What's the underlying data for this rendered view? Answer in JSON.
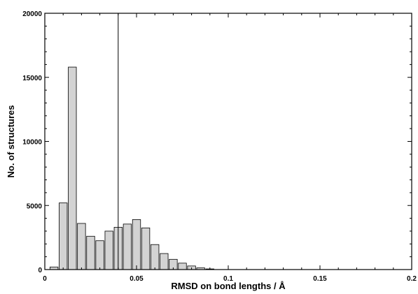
{
  "chart_data": {
    "type": "bar",
    "xlabel": "RMSD on bond lengths / Å",
    "ylabel": "No. of structures",
    "xlim": [
      0,
      0.2
    ],
    "ylim": [
      0,
      20000
    ],
    "x_ticks": [
      0,
      0.05,
      0.1,
      0.15,
      0.2
    ],
    "x_tick_labels": [
      "0",
      "0.05",
      "0.1",
      "0.15",
      "0.2"
    ],
    "y_ticks": [
      0,
      5000,
      10000,
      15000,
      20000
    ],
    "y_tick_labels": [
      "0",
      "5000",
      "10000",
      "15000",
      "20000"
    ],
    "bin_width": 0.005,
    "bins": [
      {
        "x": 0.005,
        "value": 200
      },
      {
        "x": 0.01,
        "value": 5200
      },
      {
        "x": 0.015,
        "value": 15800
      },
      {
        "x": 0.02,
        "value": 3600
      },
      {
        "x": 0.025,
        "value": 2600
      },
      {
        "x": 0.03,
        "value": 2250
      },
      {
        "x": 0.035,
        "value": 3000
      },
      {
        "x": 0.04,
        "value": 3300
      },
      {
        "x": 0.045,
        "value": 3550
      },
      {
        "x": 0.05,
        "value": 3900
      },
      {
        "x": 0.055,
        "value": 3250
      },
      {
        "x": 0.06,
        "value": 1950
      },
      {
        "x": 0.065,
        "value": 1250
      },
      {
        "x": 0.07,
        "value": 800
      },
      {
        "x": 0.075,
        "value": 500
      },
      {
        "x": 0.08,
        "value": 280
      },
      {
        "x": 0.085,
        "value": 130
      },
      {
        "x": 0.09,
        "value": 50
      }
    ],
    "reference_line_x": 0.04,
    "grid": false,
    "legend": false
  }
}
